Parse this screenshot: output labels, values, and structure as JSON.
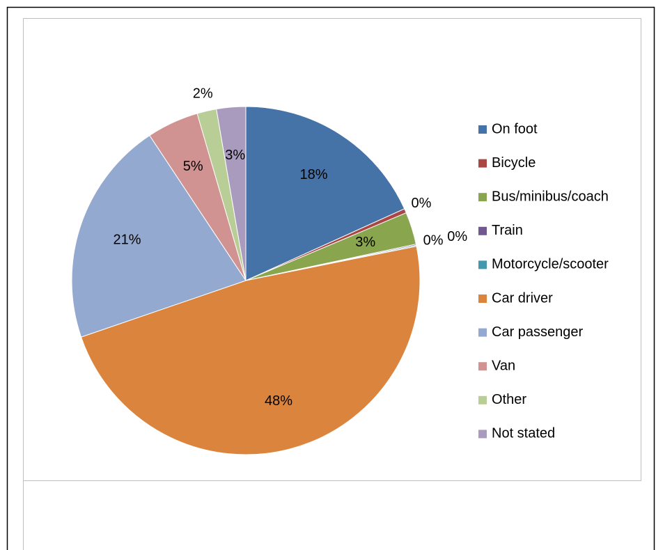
{
  "chart_data": {
    "type": "pie",
    "categories": [
      "On foot",
      "Bicycle",
      "Bus/minibus/coach",
      "Train",
      "Motorcycle/scooter",
      "Car driver",
      "Car passenger",
      "Van",
      "Other",
      "Not stated"
    ],
    "values": [
      18.2,
      0.4,
      3.0,
      0.1,
      0.1,
      47.8,
      20.9,
      4.8,
      1.8,
      2.7
    ],
    "value_labels": [
      "18%",
      "0%",
      "3%",
      "0%",
      "0%",
      "48%",
      "21%",
      "5%",
      "2%",
      "3%"
    ],
    "colors": [
      "#4572a7",
      "#aa4643",
      "#89a54e",
      "#71588f",
      "#4198af",
      "#db843d",
      "#93a9cf",
      "#d19392",
      "#b9cd96",
      "#a99bbd"
    ],
    "legend": "right"
  }
}
